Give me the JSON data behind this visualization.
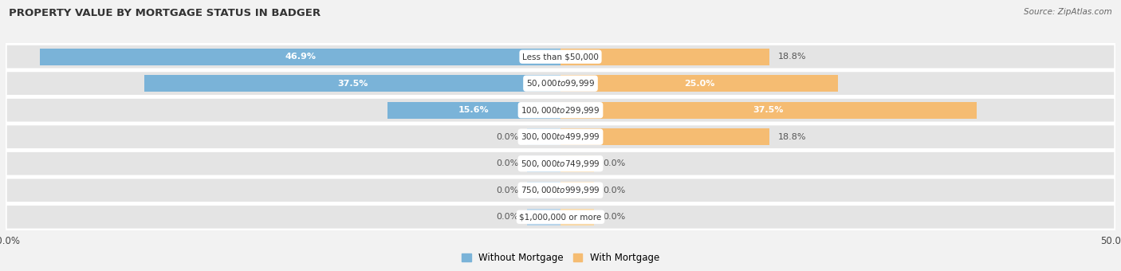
{
  "title": "PROPERTY VALUE BY MORTGAGE STATUS IN BADGER",
  "source": "Source: ZipAtlas.com",
  "categories": [
    "Less than $50,000",
    "$50,000 to $99,999",
    "$100,000 to $299,999",
    "$300,000 to $499,999",
    "$500,000 to $749,999",
    "$750,000 to $999,999",
    "$1,000,000 or more"
  ],
  "without_mortgage": [
    46.9,
    37.5,
    15.6,
    0.0,
    0.0,
    0.0,
    0.0
  ],
  "with_mortgage": [
    18.8,
    25.0,
    37.5,
    18.8,
    0.0,
    0.0,
    0.0
  ],
  "color_without": "#7ab3d8",
  "color_with": "#f5bc72",
  "color_without_zero": "#b8d4ea",
  "color_with_zero": "#f9d9a8",
  "axis_limit": 50.0,
  "bg_row_color": "#e4e4e4",
  "bg_fig_color": "#f2f2f2",
  "label_fontsize": 8.0,
  "title_fontsize": 9.5,
  "bar_height": 0.62,
  "zero_stub": 3.0
}
